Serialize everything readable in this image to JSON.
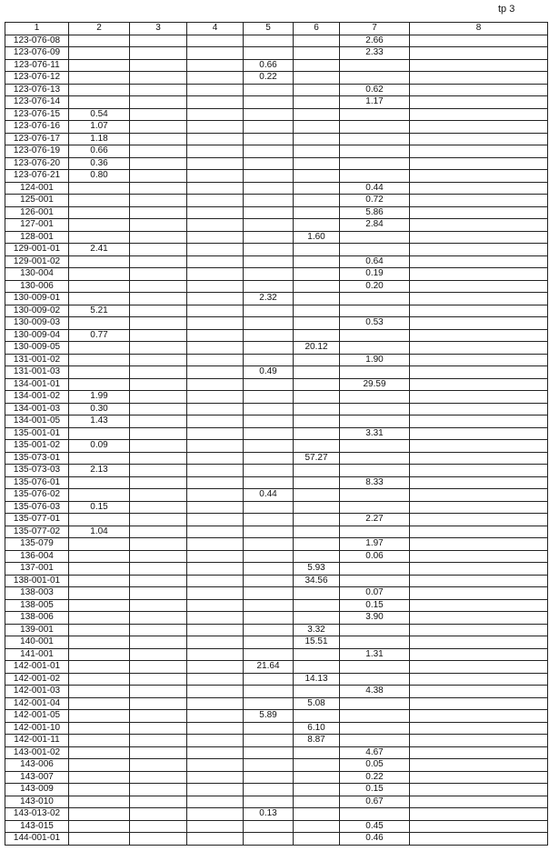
{
  "page_label": "tp 3",
  "columns": [
    "1",
    "2",
    "3",
    "4",
    "5",
    "6",
    "7",
    "8"
  ],
  "rows": [
    {
      "id": "123-076-08",
      "cells": [
        "",
        "",
        "",
        "",
        "",
        "2.66",
        ""
      ]
    },
    {
      "id": "123-076-09",
      "cells": [
        "",
        "",
        "",
        "",
        "",
        "2.33",
        ""
      ]
    },
    {
      "id": "123-076-11",
      "cells": [
        "",
        "",
        "",
        "0.66",
        "",
        "",
        ""
      ]
    },
    {
      "id": "123-076-12",
      "cells": [
        "",
        "",
        "",
        "0.22",
        "",
        "",
        ""
      ]
    },
    {
      "id": "123-076-13",
      "cells": [
        "",
        "",
        "",
        "",
        "",
        "0.62",
        ""
      ]
    },
    {
      "id": "123-076-14",
      "cells": [
        "",
        "",
        "",
        "",
        "",
        "1.17",
        ""
      ]
    },
    {
      "id": "123-076-15",
      "cells": [
        "0.54",
        "",
        "",
        "",
        "",
        "",
        ""
      ]
    },
    {
      "id": "123-076-16",
      "cells": [
        "1.07",
        "",
        "",
        "",
        "",
        "",
        ""
      ]
    },
    {
      "id": "123-076-17",
      "cells": [
        "1.18",
        "",
        "",
        "",
        "",
        "",
        ""
      ]
    },
    {
      "id": "123-076-19",
      "cells": [
        "0.66",
        "",
        "",
        "",
        "",
        "",
        ""
      ]
    },
    {
      "id": "123-076-20",
      "cells": [
        "0.36",
        "",
        "",
        "",
        "",
        "",
        ""
      ]
    },
    {
      "id": "123-076-21",
      "cells": [
        "0.80",
        "",
        "",
        "",
        "",
        "",
        ""
      ]
    },
    {
      "id": "124-001",
      "cells": [
        "",
        "",
        "",
        "",
        "",
        "0.44",
        ""
      ]
    },
    {
      "id": "125-001",
      "cells": [
        "",
        "",
        "",
        "",
        "",
        "0.72",
        ""
      ]
    },
    {
      "id": "126-001",
      "cells": [
        "",
        "",
        "",
        "",
        "",
        "5.86",
        ""
      ]
    },
    {
      "id": "127-001",
      "cells": [
        "",
        "",
        "",
        "",
        "",
        "2.84",
        ""
      ]
    },
    {
      "id": "128-001",
      "cells": [
        "",
        "",
        "",
        "",
        "1.60",
        "",
        ""
      ]
    },
    {
      "id": "129-001-01",
      "cells": [
        "2.41",
        "",
        "",
        "",
        "",
        "",
        ""
      ]
    },
    {
      "id": "129-001-02",
      "cells": [
        "",
        "",
        "",
        "",
        "",
        "0.64",
        ""
      ]
    },
    {
      "id": "130-004",
      "cells": [
        "",
        "",
        "",
        "",
        "",
        "0.19",
        ""
      ]
    },
    {
      "id": "130-006",
      "cells": [
        "",
        "",
        "",
        "",
        "",
        "0.20",
        ""
      ]
    },
    {
      "id": "130-009-01",
      "cells": [
        "",
        "",
        "",
        "2.32",
        "",
        "",
        ""
      ]
    },
    {
      "id": "130-009-02",
      "cells": [
        "5.21",
        "",
        "",
        "",
        "",
        "",
        ""
      ]
    },
    {
      "id": "130-009-03",
      "cells": [
        "",
        "",
        "",
        "",
        "",
        "0.53",
        ""
      ]
    },
    {
      "id": "130-009-04",
      "cells": [
        "0.77",
        "",
        "",
        "",
        "",
        "",
        ""
      ]
    },
    {
      "id": "130-009-05",
      "cells": [
        "",
        "",
        "",
        "",
        "20.12",
        "",
        ""
      ]
    },
    {
      "id": "131-001-02",
      "cells": [
        "",
        "",
        "",
        "",
        "",
        "1.90",
        ""
      ]
    },
    {
      "id": "131-001-03",
      "cells": [
        "",
        "",
        "",
        "0.49",
        "",
        "",
        ""
      ]
    },
    {
      "id": "134-001-01",
      "cells": [
        "",
        "",
        "",
        "",
        "",
        "29.59",
        ""
      ]
    },
    {
      "id": "134-001-02",
      "cells": [
        "1.99",
        "",
        "",
        "",
        "",
        "",
        ""
      ]
    },
    {
      "id": "134-001-03",
      "cells": [
        "0.30",
        "",
        "",
        "",
        "",
        "",
        ""
      ]
    },
    {
      "id": "134-001-05",
      "cells": [
        "1.43",
        "",
        "",
        "",
        "",
        "",
        ""
      ]
    },
    {
      "id": "135-001-01",
      "cells": [
        "",
        "",
        "",
        "",
        "",
        "3.31",
        ""
      ]
    },
    {
      "id": "135-001-02",
      "cells": [
        "0.09",
        "",
        "",
        "",
        "",
        "",
        ""
      ]
    },
    {
      "id": "135-073-01",
      "cells": [
        "",
        "",
        "",
        "",
        "57.27",
        "",
        ""
      ]
    },
    {
      "id": "135-073-03",
      "cells": [
        "2.13",
        "",
        "",
        "",
        "",
        "",
        ""
      ]
    },
    {
      "id": "135-076-01",
      "cells": [
        "",
        "",
        "",
        "",
        "",
        "8.33",
        ""
      ]
    },
    {
      "id": "135-076-02",
      "cells": [
        "",
        "",
        "",
        "0.44",
        "",
        "",
        ""
      ]
    },
    {
      "id": "135-076-03",
      "cells": [
        "0.15",
        "",
        "",
        "",
        "",
        "",
        ""
      ]
    },
    {
      "id": "135-077-01",
      "cells": [
        "",
        "",
        "",
        "",
        "",
        "2.27",
        ""
      ]
    },
    {
      "id": "135-077-02",
      "cells": [
        "1.04",
        "",
        "",
        "",
        "",
        "",
        ""
      ]
    },
    {
      "id": "135-079",
      "cells": [
        "",
        "",
        "",
        "",
        "",
        "1.97",
        ""
      ]
    },
    {
      "id": "136-004",
      "cells": [
        "",
        "",
        "",
        "",
        "",
        "0.06",
        ""
      ]
    },
    {
      "id": "137-001",
      "cells": [
        "",
        "",
        "",
        "",
        "5.93",
        "",
        ""
      ]
    },
    {
      "id": "138-001-01",
      "cells": [
        "",
        "",
        "",
        "",
        "34.56",
        "",
        ""
      ]
    },
    {
      "id": "138-003",
      "cells": [
        "",
        "",
        "",
        "",
        "",
        "0.07",
        ""
      ]
    },
    {
      "id": "138-005",
      "cells": [
        "",
        "",
        "",
        "",
        "",
        "0.15",
        ""
      ]
    },
    {
      "id": "138-006",
      "cells": [
        "",
        "",
        "",
        "",
        "",
        "3.90",
        ""
      ]
    },
    {
      "id": "139-001",
      "cells": [
        "",
        "",
        "",
        "",
        "3.32",
        "",
        ""
      ]
    },
    {
      "id": "140-001",
      "cells": [
        "",
        "",
        "",
        "",
        "15.51",
        "",
        ""
      ]
    },
    {
      "id": "141-001",
      "cells": [
        "",
        "",
        "",
        "",
        "",
        "1.31",
        ""
      ]
    },
    {
      "id": "142-001-01",
      "cells": [
        "",
        "",
        "",
        "21.64",
        "",
        "",
        ""
      ]
    },
    {
      "id": "142-001-02",
      "cells": [
        "",
        "",
        "",
        "",
        "14.13",
        "",
        ""
      ]
    },
    {
      "id": "142-001-03",
      "cells": [
        "",
        "",
        "",
        "",
        "",
        "4.38",
        ""
      ]
    },
    {
      "id": "142-001-04",
      "cells": [
        "",
        "",
        "",
        "",
        "5.08",
        "",
        ""
      ]
    },
    {
      "id": "142-001-05",
      "cells": [
        "",
        "",
        "",
        "5.89",
        "",
        "",
        ""
      ]
    },
    {
      "id": "142-001-10",
      "cells": [
        "",
        "",
        "",
        "",
        "6.10",
        "",
        ""
      ]
    },
    {
      "id": "142-001-11",
      "cells": [
        "",
        "",
        "",
        "",
        "8.87",
        "",
        ""
      ]
    },
    {
      "id": "143-001-02",
      "cells": [
        "",
        "",
        "",
        "",
        "",
        "4.67",
        ""
      ]
    },
    {
      "id": "143-006",
      "cells": [
        "",
        "",
        "",
        "",
        "",
        "0.05",
        ""
      ]
    },
    {
      "id": "143-007",
      "cells": [
        "",
        "",
        "",
        "",
        "",
        "0.22",
        ""
      ]
    },
    {
      "id": "143-009",
      "cells": [
        "",
        "",
        "",
        "",
        "",
        "0.15",
        ""
      ]
    },
    {
      "id": "143-010",
      "cells": [
        "",
        "",
        "",
        "",
        "",
        "0.67",
        ""
      ]
    },
    {
      "id": "143-013-02",
      "cells": [
        "",
        "",
        "",
        "0.13",
        "",
        "",
        ""
      ]
    },
    {
      "id": "143-015",
      "cells": [
        "",
        "",
        "",
        "",
        "",
        "0.45",
        ""
      ]
    },
    {
      "id": "144-001-01",
      "cells": [
        "",
        "",
        "",
        "",
        "",
        "0.46",
        ""
      ]
    }
  ]
}
